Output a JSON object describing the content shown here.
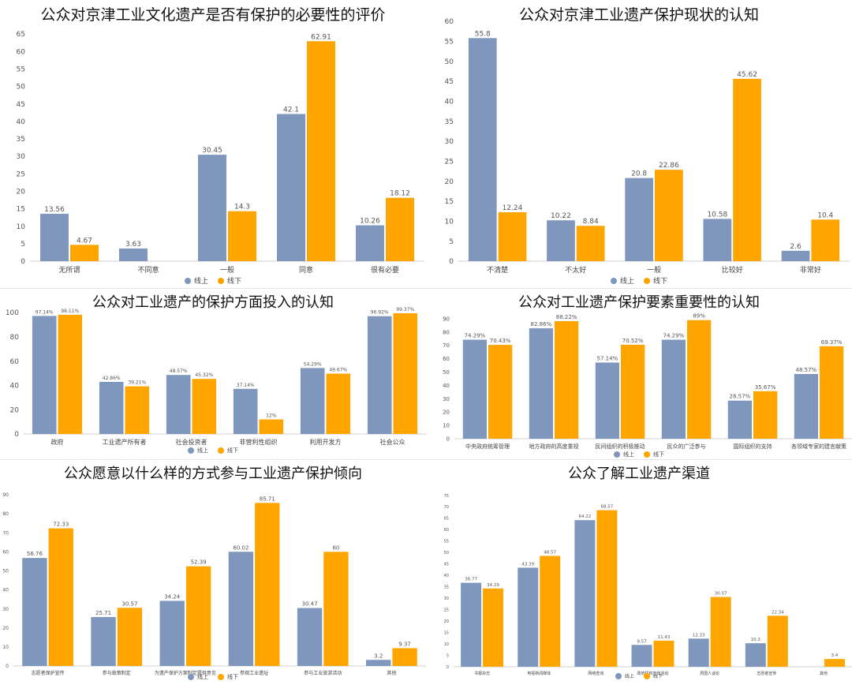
{
  "colors": {
    "online": "#7f97bd",
    "offline": "#ffa500"
  },
  "chart_data": [
    {
      "type": "bar",
      "title": "公众对京津工业文化遗产是否有保护的必要性的评价",
      "categories": [
        "无所谓",
        "不同意",
        "一般",
        "同意",
        "很有必要"
      ],
      "series": [
        {
          "name": "线上",
          "values": [
            13.56,
            3.63,
            30.45,
            42.1,
            10.26
          ],
          "labels": [
            "13.56",
            "3.63",
            "30.45",
            "42.1",
            "10.26"
          ]
        },
        {
          "name": "线下",
          "values": [
            4.67,
            null,
            14.3,
            62.91,
            18.12
          ],
          "labels": [
            "4.67",
            "",
            "14.3",
            "62.91",
            "18.12"
          ]
        }
      ],
      "ylim": [
        0,
        65
      ],
      "yticks": [
        "0",
        "5",
        "10",
        "15",
        "20",
        "25",
        "30",
        "35",
        "40",
        "45",
        "50",
        "55",
        "60",
        "65"
      ],
      "legend": [
        "线上",
        "线下"
      ],
      "legend_position": "bottom",
      "grid": false
    },
    {
      "type": "bar",
      "title": "公众对京津工业遗产保护现状的认知",
      "categories": [
        "不清楚",
        "不太好",
        "一般",
        "比较好",
        "非常好"
      ],
      "series": [
        {
          "name": "线上",
          "values": [
            55.8,
            10.22,
            20.8,
            10.58,
            2.6
          ],
          "labels": [
            "55.8",
            "10.22",
            "20.8",
            "10.58",
            "2.6"
          ]
        },
        {
          "name": "线下",
          "values": [
            12.24,
            8.84,
            22.86,
            45.62,
            10.4
          ],
          "labels": [
            "12.24",
            "8.84",
            "22.86",
            "45.62",
            "10.4"
          ]
        }
      ],
      "ylim": [
        0,
        60
      ],
      "yticks": [
        "0",
        "5",
        "10",
        "15",
        "20",
        "25",
        "30",
        "35",
        "40",
        "45",
        "50",
        "55",
        "60"
      ],
      "legend": [
        "线上",
        "线下"
      ],
      "legend_position": "bottom",
      "grid": false
    },
    {
      "type": "bar",
      "title": "公众对工业遗产的保护方面投入的认知",
      "categories": [
        "政府",
        "工业遗产所有者",
        "社会投资者",
        "非营利性组织",
        "利用开发方",
        "社会公众"
      ],
      "series": [
        {
          "name": "线上",
          "values": [
            97.14,
            42.86,
            48.57,
            37.14,
            54.29,
            96.92
          ],
          "labels": [
            "97.14%",
            "42.86%",
            "48.57%",
            "37.14%",
            "54.29%",
            "96.92%"
          ]
        },
        {
          "name": "线下",
          "values": [
            98.11,
            39.21,
            45.32,
            12,
            49.67,
            99.37
          ],
          "labels": [
            "98.11%",
            "39.21%",
            "45.32%",
            "12%",
            "49.67%",
            "99.37%"
          ]
        }
      ],
      "ylim": [
        0,
        100
      ],
      "yticks": [
        "0",
        "20",
        "40",
        "60",
        "80",
        "100"
      ],
      "legend": [
        "线上",
        "线下"
      ],
      "legend_position": "bottom",
      "grid": false
    },
    {
      "type": "bar",
      "title": "公众对工业遗产保护要素重要性的认知",
      "categories": [
        "中央政府统筹管理",
        "地方政府的高度重视",
        "民间组织的积极推动",
        "民众的广泛参与",
        "国际组织的支持",
        "各领域专家的建言献策"
      ],
      "series": [
        {
          "name": "线上",
          "values": [
            74.29,
            82.86,
            57.14,
            74.29,
            28.57,
            48.57
          ],
          "labels": [
            "74.29%",
            "82.86%",
            "57.14%",
            "74.29%",
            "28.57%",
            "48.57%"
          ]
        },
        {
          "name": "线下",
          "values": [
            70.43,
            88.22,
            70.52,
            89,
            35.67,
            69.37
          ],
          "labels": [
            "70.43%",
            "88.22%",
            "70.52%",
            "89%",
            "35.67%",
            "69.37%"
          ]
        }
      ],
      "ylim": [
        0,
        90
      ],
      "yticks": [
        "0",
        "10",
        "20",
        "30",
        "40",
        "50",
        "60",
        "70",
        "80",
        "90"
      ],
      "legend": [
        "线上",
        "线下"
      ],
      "legend_position": "bottom",
      "grid": false
    },
    {
      "type": "bar",
      "title": "公众愿意以什么样的方式参与工业遗产保护倾向",
      "categories": [
        "志愿者保护宣传",
        "参与政策制定",
        "为遗产保护方案制定提供意见",
        "参观工业遗址",
        "参与工业旅游活动",
        "其他"
      ],
      "series": [
        {
          "name": "线上",
          "values": [
            56.76,
            25.71,
            34.24,
            60.02,
            30.47,
            3.2
          ],
          "labels": [
            "56.76",
            "25.71",
            "34.24",
            "60.02",
            "30.47",
            "3.2"
          ]
        },
        {
          "name": "线下",
          "values": [
            72.33,
            30.57,
            52.39,
            85.71,
            60,
            9.37
          ],
          "labels": [
            "72.33",
            "30.57",
            "52.39",
            "85.71",
            "60",
            "9.37"
          ]
        }
      ],
      "ylim": [
        0,
        90
      ],
      "yticks": [
        "0",
        "10",
        "20",
        "30",
        "40",
        "50",
        "60",
        "70",
        "80",
        "90"
      ],
      "legend": [
        "线上",
        "线下"
      ],
      "legend_position": "bottom",
      "grid": false
    },
    {
      "type": "bar",
      "title": "公众了解工业遗产渠道",
      "categories": [
        "书报杂志",
        "电视新闻媒体",
        "网络查询",
        "政府机构宣传活动",
        "周围人谈论",
        "志愿者宣传",
        "其他"
      ],
      "series": [
        {
          "name": "线上",
          "values": [
            36.77,
            43.39,
            64.22,
            9.57,
            12.33,
            10.3,
            null
          ],
          "labels": [
            "36.77",
            "43.39",
            "64.22",
            "9.57",
            "12.33",
            "10.3",
            ""
          ]
        },
        {
          "name": "线下",
          "values": [
            34.29,
            48.57,
            68.57,
            11.43,
            30.57,
            22.34,
            3.4
          ],
          "labels": [
            "34.29",
            "48.57",
            "68.57",
            "11.43",
            "30.57",
            "22.34",
            "3.4"
          ]
        }
      ],
      "ylim": [
        0,
        75
      ],
      "yticks": [
        "0",
        "5",
        "10",
        "15",
        "20",
        "25",
        "30",
        "35",
        "40",
        "45",
        "50",
        "55",
        "60",
        "65",
        "70",
        "75"
      ],
      "legend": [
        "线上",
        "线下"
      ],
      "legend_position": "bottom",
      "grid": false
    }
  ]
}
